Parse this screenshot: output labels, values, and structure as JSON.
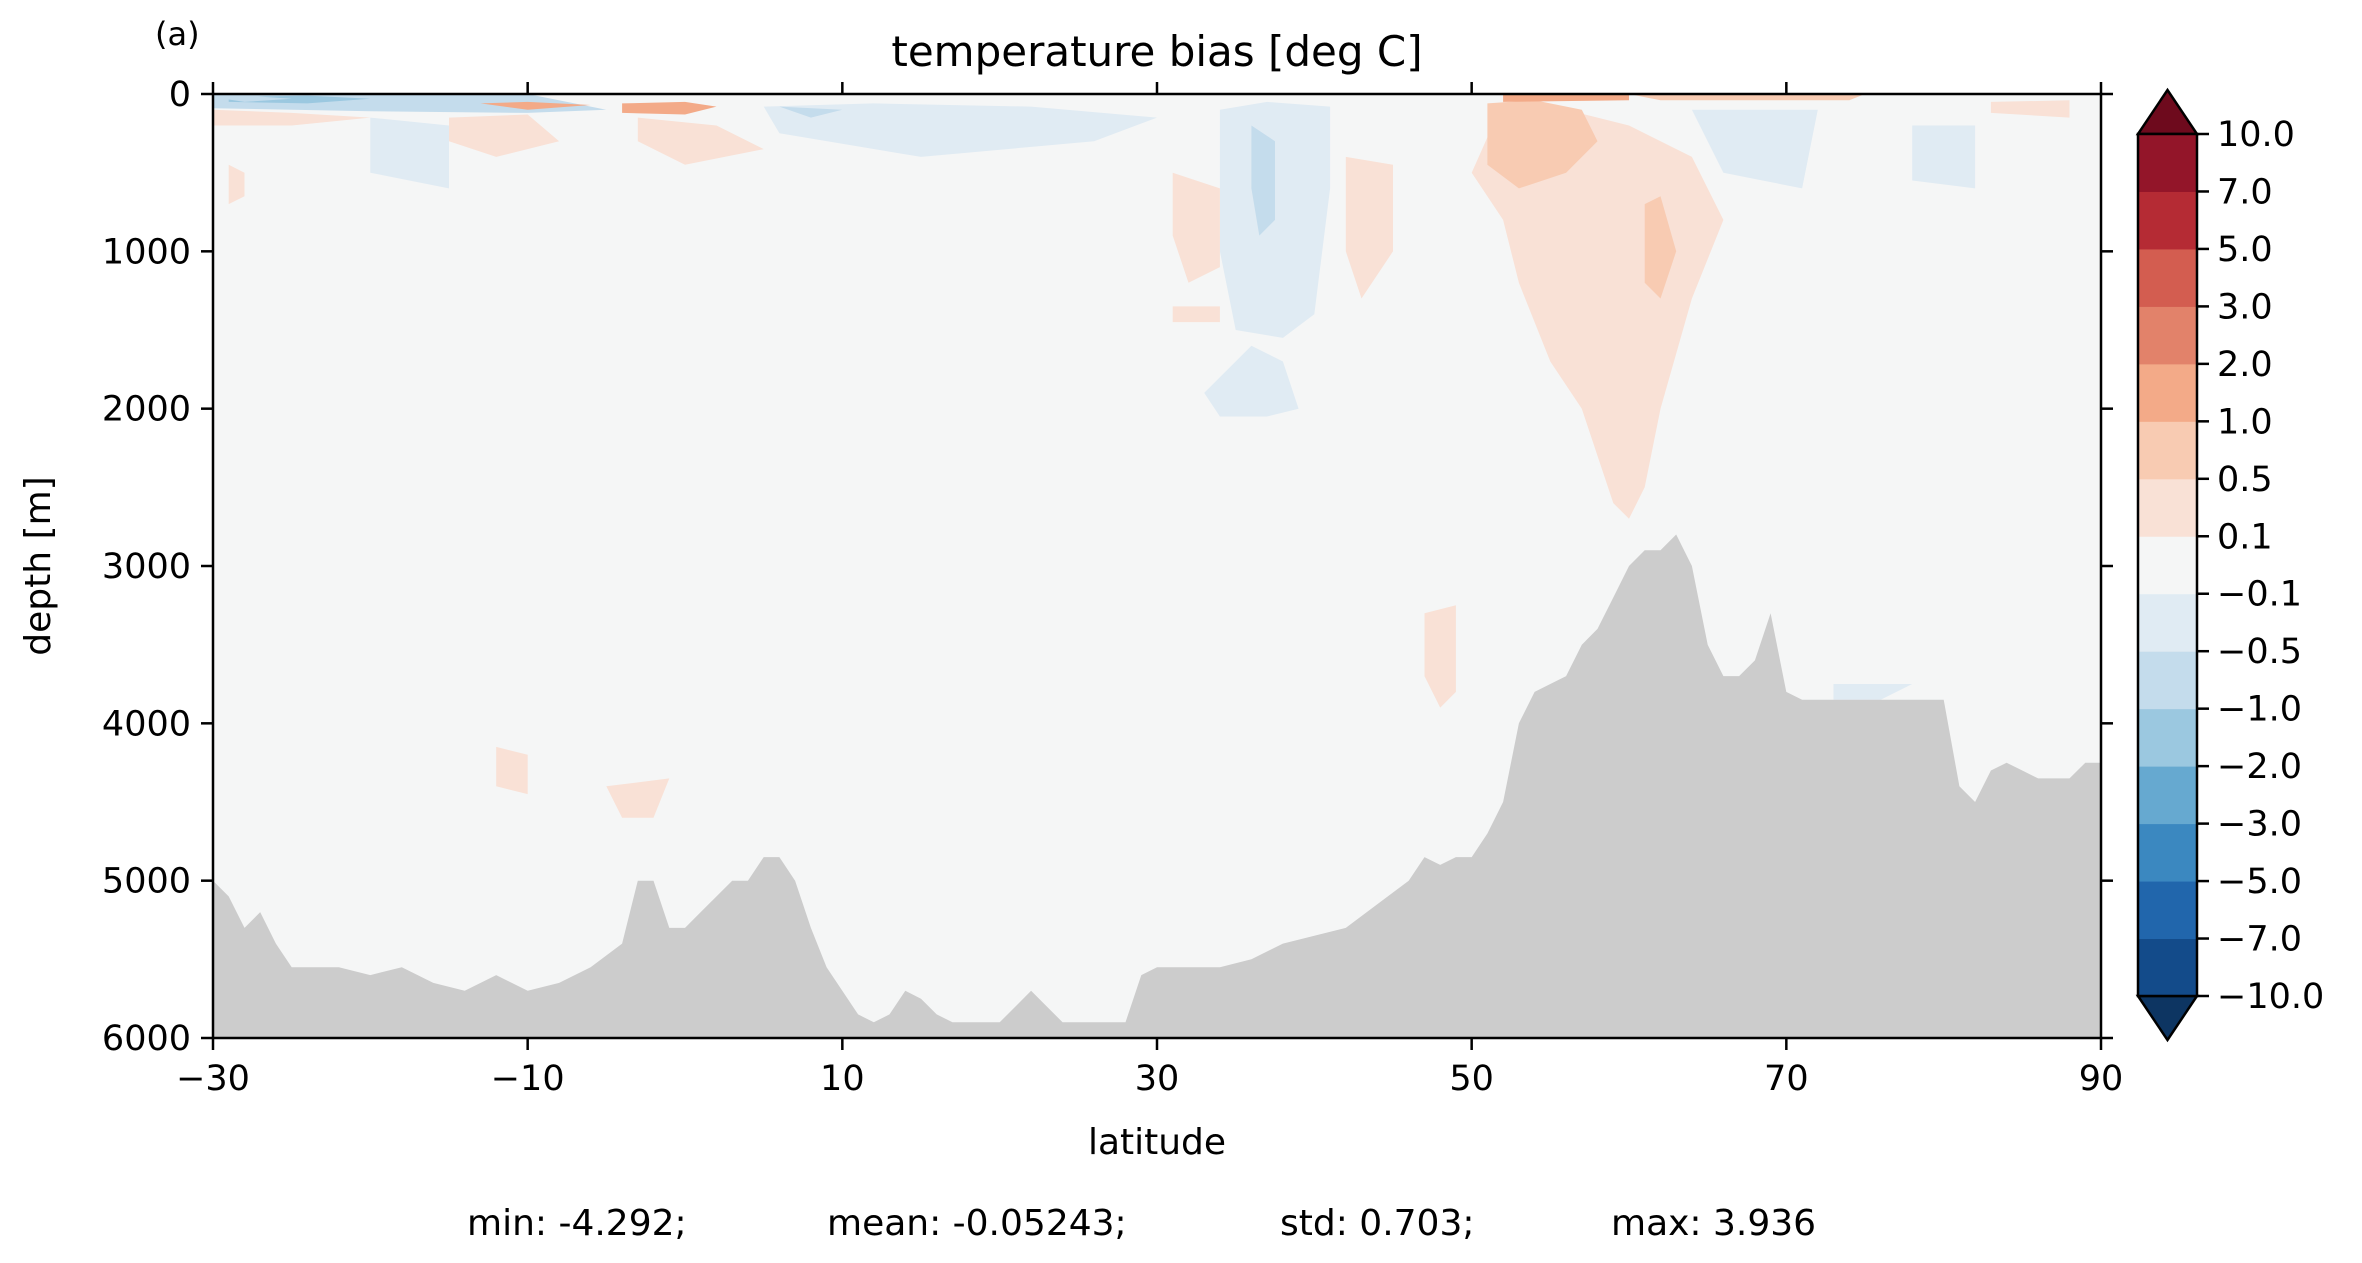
{
  "chart_data": {
    "type": "heatmap",
    "panel_label": "(a)",
    "title": "temperature bias [deg C]",
    "xlabel": "latitude",
    "ylabel": "depth [m]",
    "xlim": [
      -30,
      90
    ],
    "ylim": [
      6000,
      0
    ],
    "y_inverted": true,
    "xticks": [
      -30,
      -10,
      10,
      30,
      50,
      70,
      90
    ],
    "xtick_labels": [
      "−30",
      "−10",
      "10",
      "30",
      "50",
      "70",
      "90"
    ],
    "yticks": [
      0,
      1000,
      2000,
      3000,
      4000,
      5000,
      6000
    ],
    "ytick_labels": [
      "0",
      "1000",
      "2000",
      "3000",
      "4000",
      "5000",
      "6000"
    ],
    "colorbar": {
      "extend": "both",
      "colormap": "RdBu_r",
      "levels": [
        -10.0,
        -7.0,
        -5.0,
        -3.0,
        -2.0,
        -1.0,
        -0.5,
        -0.1,
        0.1,
        0.5,
        1.0,
        2.0,
        3.0,
        5.0,
        7.0,
        10.0
      ],
      "tick_labels": [
        "−10.0",
        "−7.0",
        "−5.0",
        "−3.0",
        "−2.0",
        "−1.0",
        "−0.5",
        "−0.1",
        "0.1",
        "0.5",
        "1.0",
        "2.0",
        "3.0",
        "5.0",
        "7.0",
        "10.0"
      ],
      "colors": [
        "#0d3562",
        "#134b8a",
        "#2166ac",
        "#3b88c0",
        "#66a9d0",
        "#9bc8e0",
        "#c4dcec",
        "#e0ebf3",
        "#f5f6f6",
        "#f9e1d6",
        "#f8cbb2",
        "#f3aa88",
        "#e2826a",
        "#d35d50",
        "#b52b34",
        "#931529",
        "#6e0a1d"
      ]
    },
    "background_value_color": "#f5f6f6",
    "land_color": "#cccccc",
    "bathymetry": {
      "lat": [
        -30,
        -29,
        -28,
        -27,
        -26,
        -25,
        -24,
        -22,
        -20,
        -18,
        -16,
        -14,
        -12,
        -10,
        -8,
        -6,
        -4,
        -3,
        -2,
        -1,
        0,
        1,
        2,
        3,
        4,
        5,
        6,
        7,
        8,
        9,
        10,
        11,
        12,
        13,
        14,
        15,
        16,
        17,
        18,
        20,
        22,
        24,
        26,
        28,
        29,
        30,
        32,
        34,
        36,
        38,
        40,
        42,
        44,
        46,
        47,
        48,
        49,
        50,
        51,
        52,
        53,
        54,
        55,
        56,
        57,
        58,
        59,
        60,
        61,
        62,
        63,
        64,
        65,
        66,
        67,
        68,
        69,
        70,
        71,
        72,
        73,
        74,
        76,
        78,
        80,
        81,
        82,
        83,
        84,
        85,
        86,
        87,
        88,
        89,
        90
      ],
      "depth": [
        5000,
        5100,
        5300,
        5200,
        5400,
        5550,
        5550,
        5550,
        5600,
        5550,
        5650,
        5700,
        5600,
        5700,
        5650,
        5550,
        5400,
        5000,
        5000,
        5300,
        5300,
        5200,
        5100,
        5000,
        5000,
        4850,
        4850,
        5000,
        5300,
        5550,
        5700,
        5850,
        5900,
        5850,
        5700,
        5750,
        5850,
        5900,
        5900,
        5900,
        5700,
        5900,
        5900,
        5900,
        5600,
        5550,
        5550,
        5550,
        5500,
        5400,
        5350,
        5300,
        5150,
        5000,
        4850,
        4900,
        4850,
        4850,
        4700,
        4500,
        4000,
        3800,
        3750,
        3700,
        3500,
        3400,
        3200,
        3000,
        2900,
        2900,
        2800,
        3000,
        3500,
        3700,
        3700,
        3600,
        3300,
        3800,
        3850,
        3850,
        3850,
        3850,
        3850,
        3850,
        3850,
        4400,
        4500,
        4300,
        4250,
        4300,
        4350,
        4350,
        4350,
        4250,
        4250
      ]
    },
    "bias_regions": [
      {
        "color": "#c4dcec",
        "points": [
          [
            -30,
            0
          ],
          [
            -20,
            0
          ],
          [
            -10,
            0
          ],
          [
            -5,
            100
          ],
          [
            -10,
            120
          ],
          [
            -20,
            110
          ],
          [
            -30,
            90
          ]
        ]
      },
      {
        "color": "#9bc8e0",
        "points": [
          [
            -29,
            20
          ],
          [
            -24,
            10
          ],
          [
            -20,
            30
          ],
          [
            -24,
            60
          ],
          [
            -29,
            50
          ]
        ]
      },
      {
        "color": "#f9e1d6",
        "points": [
          [
            -30,
            100
          ],
          [
            -25,
            120
          ],
          [
            -20,
            150
          ],
          [
            -25,
            200
          ],
          [
            -30,
            200
          ]
        ]
      },
      {
        "color": "#f3aa88",
        "points": [
          [
            -4,
            60
          ],
          [
            0,
            50
          ],
          [
            2,
            80
          ],
          [
            0,
            130
          ],
          [
            -4,
            120
          ]
        ]
      },
      {
        "color": "#f9e1d6",
        "points": [
          [
            -15,
            150
          ],
          [
            -10,
            130
          ],
          [
            -8,
            300
          ],
          [
            -12,
            400
          ],
          [
            -15,
            300
          ]
        ]
      },
      {
        "color": "#f9e1d6",
        "points": [
          [
            -29,
            450
          ],
          [
            -28,
            500
          ],
          [
            -28,
            650
          ],
          [
            -29,
            700
          ]
        ]
      },
      {
        "color": "#e0ebf3",
        "points": [
          [
            -20,
            150
          ],
          [
            -15,
            200
          ],
          [
            -15,
            600
          ],
          [
            -20,
            500
          ]
        ]
      },
      {
        "color": "#e0ebf3",
        "points": [
          [
            5,
            80
          ],
          [
            12,
            60
          ],
          [
            22,
            80
          ],
          [
            30,
            150
          ],
          [
            26,
            300
          ],
          [
            15,
            400
          ],
          [
            6,
            250
          ]
        ]
      },
      {
        "color": "#f9e1d6",
        "points": [
          [
            -3,
            150
          ],
          [
            2,
            200
          ],
          [
            5,
            350
          ],
          [
            0,
            450
          ],
          [
            -3,
            300
          ]
        ]
      },
      {
        "color": "#c4dcec",
        "points": [
          [
            6,
            80
          ],
          [
            10,
            100
          ],
          [
            8,
            150
          ]
        ]
      },
      {
        "color": "#e0ebf3",
        "points": [
          [
            34,
            100
          ],
          [
            37,
            50
          ],
          [
            41,
            80
          ],
          [
            41,
            600
          ],
          [
            40,
            1400
          ],
          [
            38,
            1550
          ],
          [
            35,
            1500
          ],
          [
            34,
            1000
          ]
        ]
      },
      {
        "color": "#c4dcec",
        "points": [
          [
            36,
            200
          ],
          [
            37.5,
            300
          ],
          [
            37.5,
            800
          ],
          [
            36.5,
            900
          ],
          [
            36,
            600
          ]
        ]
      },
      {
        "color": "#f9e1d6",
        "points": [
          [
            31,
            500
          ],
          [
            34,
            600
          ],
          [
            34,
            1100
          ],
          [
            32,
            1200
          ],
          [
            31,
            900
          ]
        ]
      },
      {
        "color": "#f9e1d6",
        "points": [
          [
            42,
            400
          ],
          [
            45,
            450
          ],
          [
            45,
            1000
          ],
          [
            43,
            1300
          ],
          [
            42,
            1000
          ]
        ]
      },
      {
        "color": "#e0ebf3",
        "points": [
          [
            33,
            1900
          ],
          [
            36,
            1600
          ],
          [
            38,
            1700
          ],
          [
            39,
            2000
          ],
          [
            37,
            2050
          ],
          [
            34,
            2050
          ]
        ]
      },
      {
        "color": "#f9e1d6",
        "points": [
          [
            31,
            1350
          ],
          [
            34,
            1350
          ],
          [
            34,
            1450
          ],
          [
            31,
            1450
          ]
        ]
      },
      {
        "color": "#f9e1d6",
        "points": [
          [
            52,
            50
          ],
          [
            56,
            100
          ],
          [
            60,
            200
          ],
          [
            64,
            400
          ],
          [
            66,
            800
          ],
          [
            64,
            1300
          ],
          [
            62,
            2000
          ],
          [
            61,
            2500
          ],
          [
            60,
            2700
          ],
          [
            59,
            2600
          ],
          [
            57,
            2000
          ],
          [
            55,
            1700
          ],
          [
            53,
            1200
          ],
          [
            52,
            800
          ],
          [
            50,
            500
          ]
        ]
      },
      {
        "color": "#f8cbb2",
        "points": [
          [
            51,
            60
          ],
          [
            54,
            40
          ],
          [
            57,
            100
          ],
          [
            58,
            300
          ],
          [
            56,
            500
          ],
          [
            53,
            600
          ],
          [
            51,
            450
          ]
        ]
      },
      {
        "color": "#f8cbb2",
        "points": [
          [
            61,
            700
          ],
          [
            62,
            650
          ],
          [
            63,
            1000
          ],
          [
            62,
            1300
          ],
          [
            61,
            1200
          ]
        ]
      },
      {
        "color": "#f3aa88",
        "points": [
          [
            52,
            0
          ],
          [
            60,
            0
          ],
          [
            60,
            40
          ],
          [
            52,
            50
          ]
        ]
      },
      {
        "color": "#f8cbb2",
        "points": [
          [
            60,
            0
          ],
          [
            75,
            0
          ],
          [
            74,
            40
          ],
          [
            62,
            40
          ]
        ]
      },
      {
        "color": "#e0ebf3",
        "points": [
          [
            64,
            100
          ],
          [
            72,
            100
          ],
          [
            71,
            600
          ],
          [
            66,
            500
          ]
        ]
      },
      {
        "color": "#e0ebf3",
        "points": [
          [
            78,
            200
          ],
          [
            82,
            200
          ],
          [
            82,
            600
          ],
          [
            78,
            550
          ]
        ]
      },
      {
        "color": "#f9e1d6",
        "points": [
          [
            83,
            50
          ],
          [
            88,
            40
          ],
          [
            88,
            150
          ],
          [
            83,
            120
          ]
        ]
      },
      {
        "color": "#f9e1d6",
        "points": [
          [
            -12,
            4150
          ],
          [
            -10,
            4200
          ],
          [
            -10,
            4450
          ],
          [
            -12,
            4400
          ]
        ]
      },
      {
        "color": "#f9e1d6",
        "points": [
          [
            -5,
            4400
          ],
          [
            -1,
            4350
          ],
          [
            -2,
            4600
          ],
          [
            -4,
            4600
          ]
        ]
      },
      {
        "color": "#f9e1d6",
        "points": [
          [
            47,
            3300
          ],
          [
            49,
            3250
          ],
          [
            49,
            3800
          ],
          [
            48,
            3900
          ],
          [
            47,
            3700
          ]
        ]
      },
      {
        "color": "#e0ebf3",
        "points": [
          [
            73,
            3750
          ],
          [
            78,
            3750
          ],
          [
            76,
            3850
          ],
          [
            73,
            3850
          ]
        ]
      },
      {
        "color": "#c4dcec",
        "points": [
          [
            -30,
            20
          ],
          [
            -28,
            10
          ],
          [
            -25,
            30
          ],
          [
            -28,
            50
          ]
        ]
      },
      {
        "color": "#f3aa88",
        "points": [
          [
            -13,
            60
          ],
          [
            -10,
            50
          ],
          [
            -6,
            70
          ],
          [
            -10,
            100
          ]
        ]
      }
    ],
    "stats": {
      "min": "min: -4.292;",
      "mean": "mean: -0.05243;",
      "std": "std: 0.703;",
      "max": "max: 3.936"
    }
  }
}
